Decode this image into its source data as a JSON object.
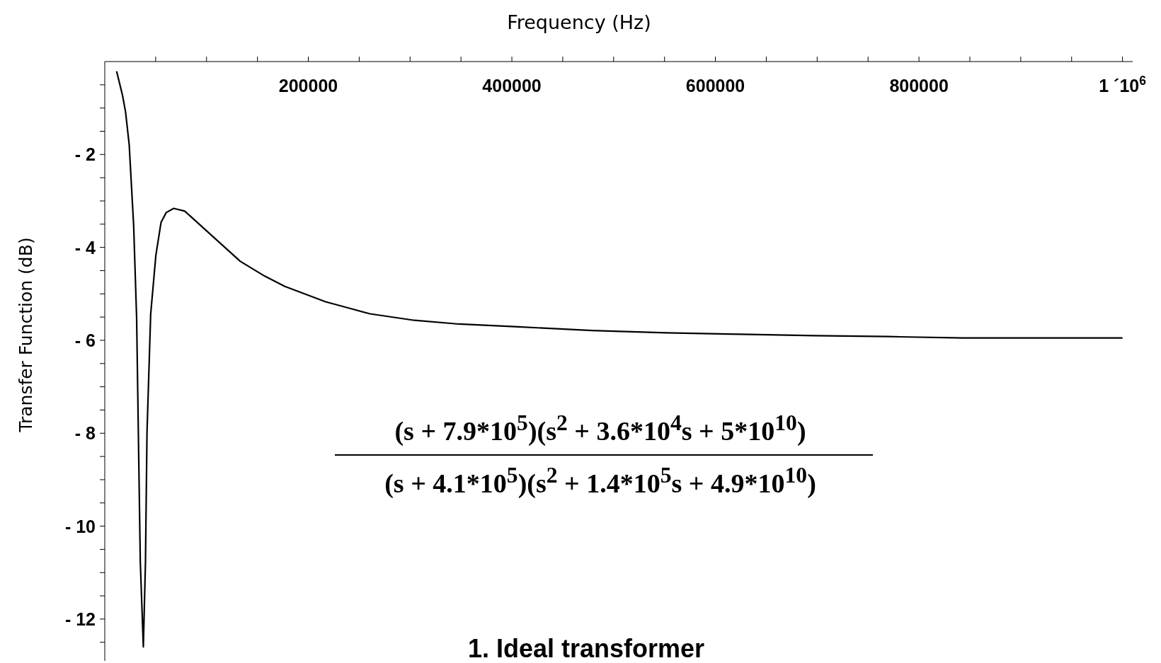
{
  "chart_data": {
    "type": "line",
    "xlabel": "Frequency (Hz)",
    "ylabel": "Transfer Function (dB)",
    "x": [
      11650,
      17470,
      20390,
      24000,
      28400,
      31300,
      34900,
      37900,
      40000,
      41500,
      45100,
      50200,
      55300,
      60400,
      67700,
      78600,
      133200,
      157300,
      176900,
      217000,
      238800,
      260600,
      304300,
      348000,
      406300,
      479100,
      551900,
      624700,
      697500,
      770300,
      843100,
      1000000
    ],
    "series": [
      {
        "color": "#000000",
        "values": [
          -0.21,
          -0.73,
          -1.08,
          -1.79,
          -3.54,
          -5.52,
          -10.76,
          -12.6,
          -10.76,
          -7.98,
          -5.44,
          -4.17,
          -3.46,
          -3.25,
          -3.16,
          -3.22,
          -4.3,
          -4.62,
          -4.84,
          -5.17,
          -5.3,
          -5.43,
          -5.57,
          -5.65,
          -5.71,
          -5.79,
          -5.84,
          -5.87,
          -5.9,
          -5.92,
          -5.95,
          -5.95
        ]
      }
    ],
    "xlim": [
      0,
      1010000
    ],
    "xticks": [
      {
        "value": 50000,
        "label": null
      },
      {
        "value": 100000,
        "label": null
      },
      {
        "value": 150000,
        "label": null
      },
      200000,
      {
        "value": 250000,
        "label": null
      },
      {
        "value": 300000,
        "label": null
      },
      {
        "value": 350000,
        "label": null
      },
      400000,
      {
        "value": 450000,
        "label": null
      },
      {
        "value": 500000,
        "label": null
      },
      {
        "value": 550000,
        "label": null
      },
      600000,
      {
        "value": 650000,
        "label": null
      },
      {
        "value": 700000,
        "label": null
      },
      {
        "value": 750000,
        "label": null
      },
      800000,
      {
        "value": 850000,
        "label": null
      },
      {
        "value": 900000,
        "label": null
      },
      {
        "value": 950000,
        "label": null
      },
      {
        "value": 1000000,
        "label": "1 ´10$^{6}$"
      }
    ],
    "ylim": [
      -12.9,
      0
    ],
    "yticks": [
      {
        "value": -0.5,
        "label": null
      },
      {
        "value": -1,
        "label": null
      },
      {
        "value": -1.5,
        "label": null
      },
      {
        "value": -2,
        "label": "- 2"
      },
      {
        "value": -2.5,
        "label": null
      },
      {
        "value": -3,
        "label": null
      },
      {
        "value": -3.5,
        "label": null
      },
      {
        "value": -4,
        "label": "- 4"
      },
      {
        "value": -4.5,
        "label": null
      },
      {
        "value": -5,
        "label": null
      },
      {
        "value": -5.5,
        "label": null
      },
      {
        "value": -6,
        "label": "- 6"
      },
      {
        "value": -6.5,
        "label": null
      },
      {
        "value": -7,
        "label": null
      },
      {
        "value": -7.5,
        "label": null
      },
      {
        "value": -8,
        "label": "- 8"
      },
      {
        "value": -8.5,
        "label": null
      },
      {
        "value": -9,
        "label": null
      },
      {
        "value": -9.5,
        "label": null
      },
      {
        "value": -10,
        "label": "- 10"
      },
      {
        "value": -10.5,
        "label": null
      },
      {
        "value": -11,
        "label": null
      },
      {
        "value": -11.5,
        "label": null
      },
      {
        "value": -12,
        "label": "- 12"
      },
      {
        "value": -12.5,
        "label": null
      }
    ],
    "annotations": [
      "(s + 7.9*10$^{5}$)(s$^{2}$ + 3.6*10$^{4}$s + 5*10$^{10}$)",
      "(s + 4.1*10$^{5}$)(s$^{2}$ + 1.4*10$^{5}$s + 4.9*10$^{10}$)",
      "1. Ideal transformer"
    ],
    "grid": false,
    "legend": false,
    "marker": "none",
    "line_style": "solid"
  }
}
